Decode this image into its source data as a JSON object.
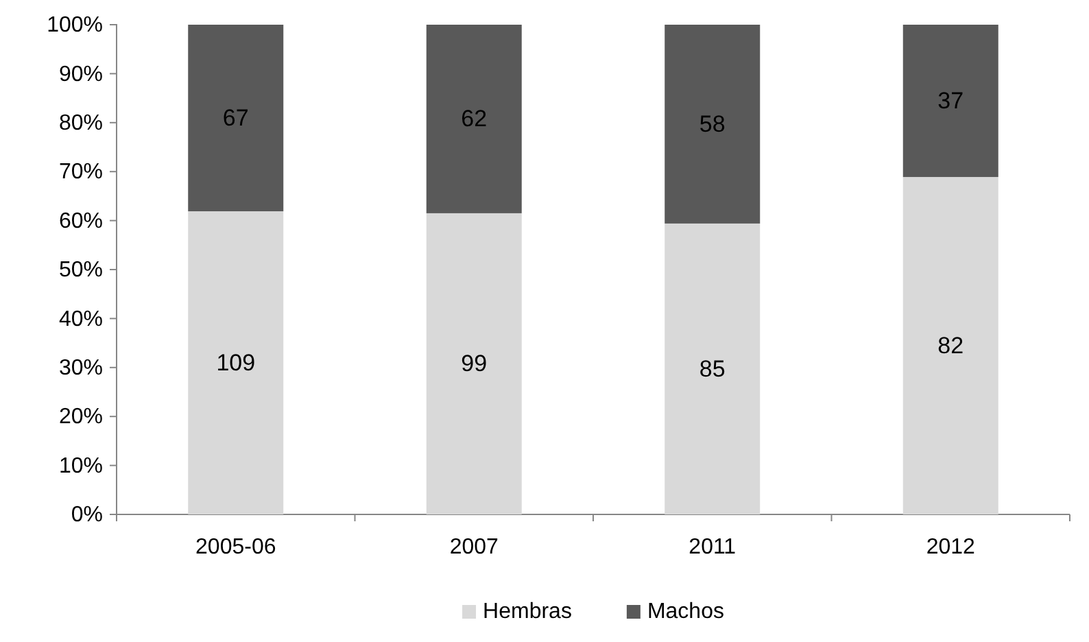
{
  "chart_data": {
    "type": "bar",
    "stacked": true,
    "categories": [
      "2005-06",
      "2007",
      "2011",
      "2012"
    ],
    "series": [
      {
        "name": "Hembras",
        "color": "#d9d9d9",
        "values": [
          61.9,
          61.5,
          59.4,
          68.9
        ]
      },
      {
        "name": "Machos",
        "color": "#595959",
        "values": [
          38.1,
          38.5,
          40.6,
          31.1
        ]
      }
    ],
    "annotations": [
      "109",
      "99",
      "85",
      "82",
      "67",
      "62",
      "58",
      "37"
    ],
    "ylim": [
      0,
      100
    ],
    "yticks": [
      {
        "value": 0,
        "label": "0%"
      },
      {
        "value": 10,
        "label": "10%"
      },
      {
        "value": 20,
        "label": "20%"
      },
      {
        "value": 30,
        "label": "30%"
      },
      {
        "value": 40,
        "label": "40%"
      },
      {
        "value": 50,
        "label": "50%"
      },
      {
        "value": 60,
        "label": "60%"
      },
      {
        "value": 70,
        "label": "70%"
      },
      {
        "value": 80,
        "label": "80%"
      },
      {
        "value": 90,
        "label": "90%"
      },
      {
        "value": 100,
        "label": "100%"
      }
    ],
    "legend": "bottom"
  }
}
